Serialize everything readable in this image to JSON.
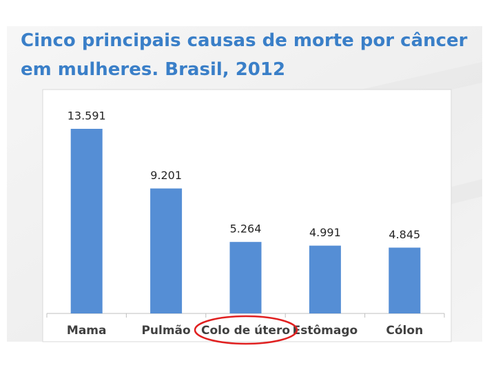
{
  "chart_data": {
    "type": "bar",
    "title": "Cinco principais causas de morte por câncer em mulheres. Brasil, 2012",
    "categories": [
      "Mama",
      "Pulmão",
      "Colo de útero",
      "Estômago",
      "Cólon"
    ],
    "values": [
      13591,
      9201,
      5264,
      4991,
      4845
    ],
    "value_labels": [
      "13.591",
      "9.201",
      "5.264",
      "4.991",
      "4.845"
    ],
    "color": "#558ed5"
  }
}
